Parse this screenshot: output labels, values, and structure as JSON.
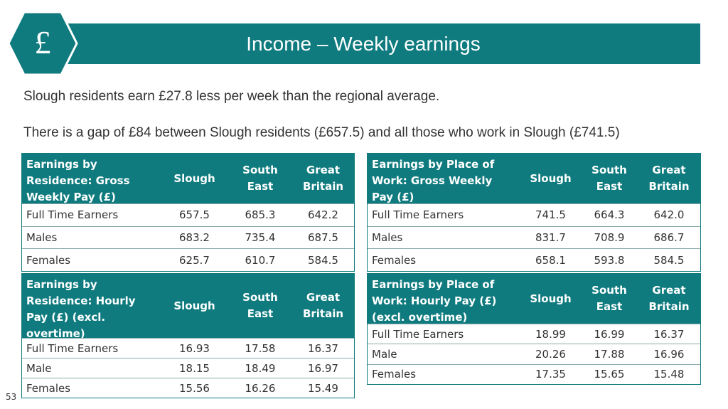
{
  "header": {
    "icon": "£",
    "title": "Income – Weekly earnings"
  },
  "paragraphs": [
    "Slough residents earn £27.8 less per week than the regional average.",
    "There is a gap of £84 between Slough residents (£657.5) and all those who work in Slough (£741.5)"
  ],
  "tables": [
    {
      "columns": [
        "Earnings by Residence: Gross Weekly Pay (£)",
        "Slough",
        "South East",
        "Great Britain"
      ],
      "rows": [
        [
          "Full Time Earners",
          "657.5",
          "685.3",
          "642.2"
        ],
        [
          "Males",
          "683.2",
          "735.4",
          "687.5"
        ],
        [
          "Females",
          "625.7",
          "610.7",
          "584.5"
        ]
      ]
    },
    {
      "columns": [
        "Earnings by Place of Work: Gross Weekly Pay (£)",
        "Slough",
        "South East",
        "Great Britain"
      ],
      "rows": [
        [
          "Full Time Earners",
          "741.5",
          "664.3",
          "642.0"
        ],
        [
          "Males",
          "831.7",
          "708.9",
          "686.7"
        ],
        [
          "Females",
          "658.1",
          "593.8",
          "584.5"
        ]
      ]
    },
    {
      "columns": [
        "Earnings by Residence: Hourly Pay (£) (excl. overtime)",
        "Slough",
        "South East",
        "Great Britain"
      ],
      "rows": [
        [
          "Full Time Earners",
          "16.93",
          "17.58",
          "16.37"
        ],
        [
          "Male",
          "18.15",
          "18.49",
          "16.97"
        ],
        [
          "Females",
          "15.56",
          "16.26",
          "15.49"
        ]
      ]
    },
    {
      "columns": [
        "Earnings by Place of Work: Hourly Pay (£) (excl. overtime)",
        "Slough",
        "South East",
        "Great Britain"
      ],
      "rows": [
        [
          "Full Time Earners",
          "18.99",
          "16.99",
          "16.37"
        ],
        [
          "Male",
          "20.26",
          "17.88",
          "16.96"
        ],
        [
          "Females",
          "17.35",
          "15.65",
          "15.48"
        ]
      ]
    }
  ],
  "page_number": "53"
}
